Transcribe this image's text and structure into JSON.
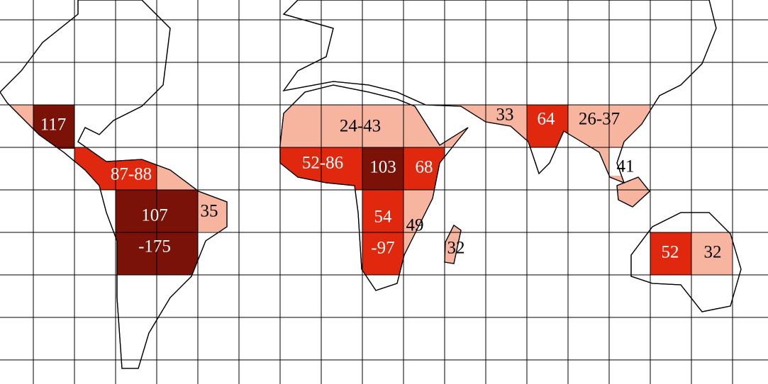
{
  "regions": [
    {
      "lines": [
        "117"
      ],
      "color": "#7a1208"
    },
    {
      "lines": [
        "87-88"
      ],
      "color": "#e0280e"
    },
    {
      "lines": [
        "107",
        "-175"
      ],
      "color": "#7a1208"
    },
    {
      "lines": [
        "35"
      ],
      "color": "#f7b5a0"
    },
    {
      "lines": [
        "24-43"
      ],
      "color": "#f7b5a0"
    },
    {
      "lines": [
        "52-86"
      ],
      "color": "#e0280e"
    },
    {
      "lines": [
        "103"
      ],
      "color": "#7a1208"
    },
    {
      "lines": [
        "68"
      ],
      "color": "#e0280e"
    },
    {
      "lines": [
        "54",
        "-97"
      ],
      "color": "#e0280e"
    },
    {
      "lines": [
        "49"
      ],
      "color": "#f7b5a0"
    },
    {
      "lines": [
        "32"
      ],
      "color": "#f7b5a0"
    },
    {
      "lines": [
        "33"
      ],
      "color": "#f7b5a0"
    },
    {
      "lines": [
        "64"
      ],
      "color": "#e0280e"
    },
    {
      "lines": [
        "26-37"
      ],
      "color": "#f7b5a0"
    },
    {
      "lines": [
        "41"
      ],
      "color": "#f7b5a0"
    },
    {
      "lines": [
        "52"
      ],
      "color": "#e0280e"
    },
    {
      "lines": [
        "32"
      ],
      "color": "#f7b5a0"
    }
  ]
}
